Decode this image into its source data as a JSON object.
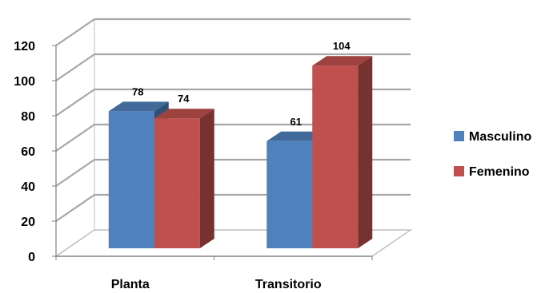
{
  "chart_data": {
    "type": "bar",
    "categories": [
      "Planta",
      "Transitorio"
    ],
    "series": [
      {
        "name": "Masculino",
        "values": [
          78,
          61
        ],
        "color": "#4f81bd"
      },
      {
        "name": "Femenino",
        "values": [
          74,
          104
        ],
        "color": "#c0504d"
      }
    ],
    "y_ticks": [
      "0",
      "20",
      "40",
      "60",
      "80",
      "100",
      "120"
    ],
    "ylim": [
      0,
      120
    ],
    "grid": true,
    "legend_position": "right",
    "title": "",
    "xlabel": "",
    "ylabel": ""
  }
}
